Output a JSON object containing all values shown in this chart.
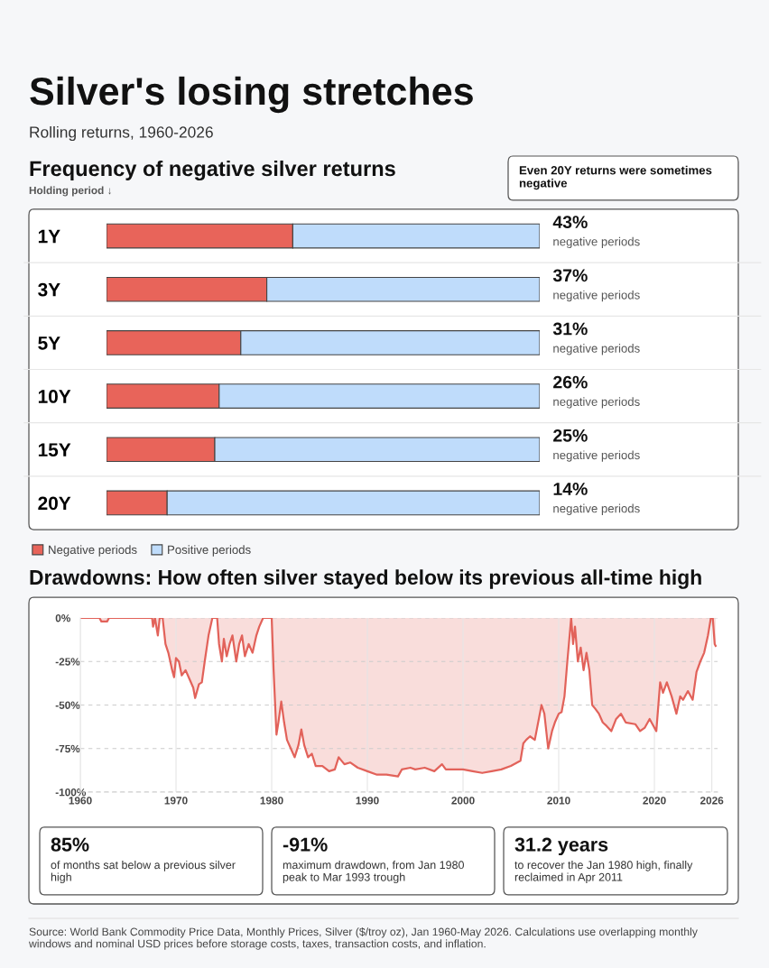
{
  "chart_data": [
    {
      "type": "other",
      "title": "Silver's losing stretches",
      "subtitle": "Rolling returns, 1960-2026"
    },
    {
      "type": "bar",
      "orientation": "horizontal",
      "stacked": true,
      "title": "Frequency of negative silver returns",
      "ylabel": "Holding period ↓",
      "categories": [
        "1Y",
        "3Y",
        "5Y",
        "10Y",
        "15Y",
        "20Y"
      ],
      "series": [
        {
          "name": "Negative periods",
          "color": "#e8645a",
          "values": [
            43,
            37,
            31,
            26,
            25,
            14
          ],
          "value_labels": [
            "43%\nnegative periods",
            "37%\nnegative periods",
            "31%\nnegative periods",
            "26%\nnegative periods",
            "25%\nnegative periods",
            "14%\nnegative periods"
          ]
        },
        {
          "name": "Positive periods",
          "color": "#bfdcfb",
          "values": [
            57,
            63,
            69,
            74,
            75,
            86
          ]
        }
      ],
      "xlim": [
        0,
        100
      ],
      "tick_labels": "y",
      "legend": "bottom left",
      "annotations": [
        "Even 20Y returns were sometimes negative"
      ]
    },
    {
      "type": "area",
      "title": "Drawdowns: How often silver stayed below its previous all-time high",
      "x": [
        1960,
        1962,
        1962.2,
        1962.8,
        1963,
        1967.5,
        1967.6,
        1967.8,
        1968.1,
        1968.3,
        1968.6,
        1968.9,
        1969.2,
        1969.6,
        1969.8,
        1970.0,
        1970.3,
        1970.6,
        1971.0,
        1971.4,
        1971.8,
        1972.0,
        1972.4,
        1972.7,
        1973.0,
        1973.4,
        1973.8,
        1974.3,
        1974.5,
        1974.8,
        1975.0,
        1975.3,
        1975.6,
        1975.9,
        1976.3,
        1976.6,
        1976.9,
        1977.2,
        1977.6,
        1978.0,
        1978.4,
        1978.7,
        1979.1,
        1980.0,
        1980.2,
        1980.5,
        1980.7,
        1981.0,
        1981.3,
        1981.6,
        1982.0,
        1982.4,
        1982.8,
        1983.1,
        1983.4,
        1983.8,
        1984.2,
        1984.6,
        1985.3,
        1986.0,
        1986.6,
        1987.0,
        1987.6,
        1988.2,
        1989.0,
        1990.0,
        1991.0,
        1992.0,
        1993.2,
        1993.6,
        1994.5,
        1995.0,
        1996.0,
        1997.0,
        1997.8,
        1998.2,
        1999.0,
        2000.0,
        2001.0,
        2002.0,
        2003.0,
        2004.0,
        2005.0,
        2006.0,
        2006.3,
        2006.6,
        2007.0,
        2007.5,
        2008.2,
        2008.5,
        2008.9,
        2009.3,
        2009.6,
        2010.0,
        2010.3,
        2010.6,
        2010.9,
        2011.3,
        2011.5,
        2011.7,
        2012.0,
        2012.3,
        2012.6,
        2012.9,
        2013.2,
        2013.5,
        2013.8,
        2014.2,
        2014.6,
        2015.0,
        2015.5,
        2016.0,
        2016.5,
        2017.0,
        2018.0,
        2018.5,
        2019.0,
        2019.5,
        2020.2,
        2020.6,
        2020.9,
        2021.3,
        2021.8,
        2022.3,
        2022.7,
        2023.0,
        2023.5,
        2024.0,
        2024.4,
        2024.8,
        2025.2,
        2025.6,
        2025.9,
        2026.1,
        2026.3,
        2026.4
      ],
      "series": [
        {
          "color": "#e2625a",
          "values": [
            0,
            0,
            -2,
            -2,
            0,
            0,
            -5,
            0,
            -10,
            0,
            0,
            -15,
            -20,
            -30,
            -34,
            -23,
            -25,
            -33,
            -30,
            -35,
            -40,
            -46,
            -38,
            -37,
            -25,
            -10,
            0,
            0,
            -15,
            -25,
            -12,
            -22,
            -15,
            -10,
            -25,
            -15,
            -10,
            -22,
            -15,
            -20,
            -10,
            -5,
            0,
            0,
            -30,
            -67,
            -60,
            -48,
            -60,
            -70,
            -75,
            -80,
            -73,
            -64,
            -73,
            -80,
            -78,
            -85,
            -85,
            -88,
            -87,
            -80,
            -84,
            -83,
            -86,
            -88,
            -90,
            -90,
            -91,
            -87,
            -86,
            -87,
            -86,
            -88,
            -84,
            -87,
            -87,
            -87,
            -88,
            -89,
            -88,
            -87,
            -85,
            -82,
            -72,
            -70,
            -68,
            -70,
            -50,
            -55,
            -75,
            -65,
            -60,
            -55,
            -54,
            -45,
            -25,
            0,
            -15,
            -5,
            -25,
            -17,
            -30,
            -20,
            -30,
            -50,
            -52,
            -55,
            -60,
            -62,
            -65,
            -58,
            -55,
            -60,
            -61,
            -65,
            -63,
            -58,
            -65,
            -37,
            -43,
            -37,
            -45,
            -55,
            -45,
            -47,
            -42,
            -47,
            -31,
            -25,
            -20,
            -10,
            0,
            0,
            -15,
            -16
          ]
        }
      ],
      "xlim": [
        1960,
        2026.6
      ],
      "xticks": [
        1960,
        1970,
        1980,
        1990,
        2000,
        2010,
        2020,
        2026
      ],
      "ylim": [
        -100,
        0
      ],
      "yticks": [
        {
          "value": 0,
          "label": "0%"
        },
        {
          "value": -25,
          "label": "-25%"
        },
        {
          "value": -50,
          "label": "-50%"
        },
        {
          "value": -75,
          "label": "-75%"
        },
        {
          "value": -100,
          "label": "-100%"
        }
      ],
      "grid": true,
      "annotations": [
        "85%",
        "of months sat below a previous silver high",
        "-91%",
        "maximum drawdown, from Jan 1980 peak to Mar 1993 trough",
        "31.2 years",
        "to recover the Jan 1980 high, finally reclaimed in Apr 2011",
        "Source: World Bank Commodity Price Data, Monthly Prices, Silver ($/troy oz), Jan 1960-May 2026. Calculations use overlapping monthly windows and nominal USD prices before storage costs, taxes, transaction costs, and inflation."
      ]
    }
  ]
}
